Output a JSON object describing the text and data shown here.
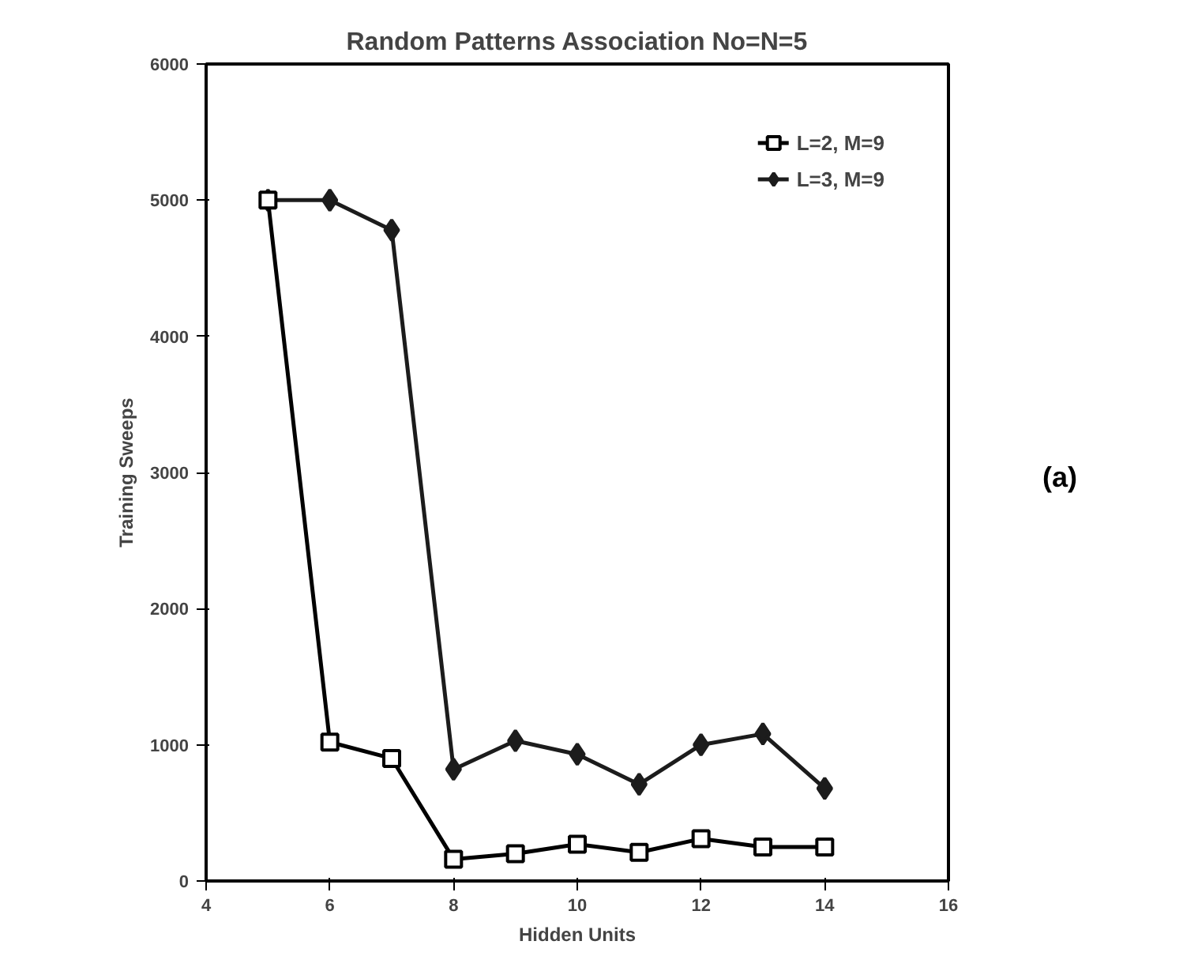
{
  "chart_data": {
    "type": "line",
    "title": "Random Patterns Association No=N=5",
    "xlabel": "Hidden Units",
    "ylabel": "Training Sweeps",
    "x": [
      5,
      6,
      7,
      8,
      9,
      10,
      11,
      12,
      13,
      14
    ],
    "series": [
      {
        "name": "L=2, M=9",
        "color": "#000000",
        "marker": "square",
        "values": [
          5000,
          1020,
          900,
          160,
          200,
          270,
          210,
          310,
          250,
          250
        ]
      },
      {
        "name": "L=3, M=9",
        "color": "#1c1c1c",
        "marker": "diamond",
        "values": [
          5000,
          5000,
          4780,
          820,
          1030,
          930,
          710,
          1000,
          1080,
          680
        ]
      }
    ],
    "xlim": [
      4,
      16
    ],
    "xticks": [
      4,
      6,
      8,
      10,
      12,
      14,
      16
    ],
    "ylim": [
      0,
      6000
    ],
    "yticks": [
      0,
      1000,
      2000,
      3000,
      4000,
      5000,
      6000
    ],
    "grid": false,
    "legend": "top right",
    "annotations": [
      "(a)"
    ]
  }
}
